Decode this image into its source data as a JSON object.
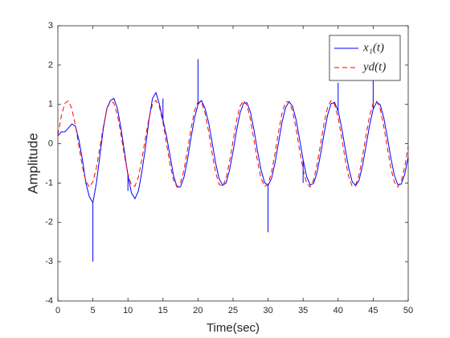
{
  "chart_data": {
    "type": "line",
    "xlabel": "Time(sec)",
    "ylabel": "Amplitude",
    "xlim": [
      0,
      50
    ],
    "ylim": [
      -4,
      3
    ],
    "xticks": [
      0,
      5,
      10,
      15,
      20,
      25,
      30,
      35,
      40,
      45,
      50
    ],
    "yticks": [
      -4,
      -3,
      -2,
      -1,
      0,
      1,
      2,
      3
    ],
    "grid": false,
    "legend": "northeast",
    "series": [
      {
        "name": "x₁(t)",
        "color": "#0000ff",
        "dash": "solid",
        "x": [
          0,
          0.5,
          1,
          1.5,
          2,
          2.5,
          3,
          3.5,
          4,
          4.5,
          5,
          5,
          5,
          5.5,
          6,
          6.5,
          7,
          7.5,
          8,
          8.5,
          9,
          9.5,
          10,
          10,
          10,
          10.5,
          11,
          11.5,
          12,
          12.5,
          13,
          13.5,
          14,
          14.5,
          15,
          15,
          15,
          15.5,
          16,
          16.5,
          17,
          17.5,
          18,
          18.5,
          19,
          19.5,
          20,
          20,
          20,
          20.5,
          21,
          21.5,
          22,
          22.5,
          23,
          23.5,
          24,
          24.5,
          25,
          25.5,
          26,
          26.5,
          27,
          27.5,
          28,
          28.5,
          29,
          29.5,
          30,
          30,
          30,
          30.5,
          31,
          31.5,
          32,
          32.5,
          33,
          33.5,
          34,
          34.5,
          35,
          35,
          35,
          35.5,
          36,
          36.5,
          37,
          37.5,
          38,
          38.5,
          39,
          39.5,
          40,
          40,
          40,
          40.5,
          41,
          41.5,
          42,
          42.5,
          43,
          43.5,
          44,
          44.5,
          45,
          45,
          45,
          45.5,
          46,
          46.5,
          47,
          47.5,
          48,
          48.5,
          49,
          49.5,
          50
        ],
        "values": [
          0.2,
          0.3,
          0.3,
          0.4,
          0.5,
          0.45,
          0.1,
          -0.4,
          -1.0,
          -1.35,
          -1.5,
          -3,
          -1.5,
          -1.0,
          -0.3,
          0.4,
          0.9,
          1.1,
          1.15,
          0.9,
          0.4,
          -0.2,
          -0.8,
          -1.2,
          -0.8,
          -1.25,
          -1.4,
          -1.2,
          -0.7,
          -0.1,
          0.6,
          1.15,
          1.3,
          1.0,
          0.6,
          1.15,
          0.6,
          0.2,
          -0.3,
          -0.8,
          -1.1,
          -1.1,
          -0.85,
          -0.4,
          0.15,
          0.65,
          1.0,
          2.15,
          1.0,
          1.1,
          0.9,
          0.55,
          0.05,
          -0.48,
          -0.88,
          -1.06,
          -1.0,
          -0.67,
          -0.2,
          0.33,
          0.78,
          1.03,
          1.04,
          0.79,
          0.34,
          -0.19,
          -0.67,
          -0.99,
          -1.06,
          -2.25,
          -1.06,
          -0.88,
          -0.48,
          0.04,
          0.55,
          0.92,
          1.07,
          0.95,
          0.61,
          0.11,
          -0.41,
          -1.0,
          -0.41,
          -0.83,
          -1.05,
          -1.01,
          -0.72,
          -0.26,
          0.27,
          0.73,
          1.02,
          1.05,
          0.83,
          1.55,
          0.83,
          0.41,
          -0.12,
          -0.61,
          -0.96,
          -1.07,
          -0.92,
          -0.54,
          -0.03,
          0.48,
          0.88,
          1.75,
          0.88,
          1.06,
          0.99,
          0.67,
          0.19,
          -0.34,
          -0.79,
          -1.04,
          -1.03,
          -0.78,
          -0.33
        ]
      },
      {
        "name": "yd(t)",
        "color": "#ff0000",
        "dash": "dashed",
        "x": [
          0,
          0.5,
          1,
          1.5,
          2,
          2.5,
          3,
          3.5,
          4,
          4.5,
          5,
          5.5,
          6,
          6.5,
          7,
          7.5,
          8,
          8.5,
          9,
          9.5,
          10,
          10.5,
          11,
          11.5,
          12,
          12.5,
          13,
          13.5,
          14,
          14.5,
          15,
          15.5,
          16,
          16.5,
          17,
          17.5,
          18,
          18.5,
          19,
          19.5,
          20,
          20.5,
          21,
          21.5,
          22,
          22.5,
          23,
          23.5,
          24,
          24.5,
          25,
          25.5,
          26,
          26.5,
          27,
          27.5,
          28,
          28.5,
          29,
          29.5,
          30,
          30.5,
          31,
          31.5,
          32,
          32.5,
          33,
          33.5,
          34,
          34.5,
          35,
          35.5,
          36,
          36.5,
          37,
          37.5,
          38,
          38.5,
          39,
          39.5,
          40,
          40.5,
          41,
          41.5,
          42,
          42.5,
          43,
          43.5,
          44,
          44.5,
          45,
          45.5,
          46,
          46.5,
          47,
          47.5,
          48,
          48.5,
          49,
          49.5,
          50
        ],
        "values": [
          0.22,
          0.71,
          1.03,
          1.09,
          0.89,
          0.47,
          -0.06,
          -0.58,
          -0.96,
          -1.1,
          -0.97,
          -0.61,
          -0.09,
          0.45,
          0.87,
          1.09,
          1.03,
          0.73,
          0.25,
          -0.3,
          -0.77,
          -1.05,
          -1.08,
          -0.84,
          -0.39,
          0.15,
          0.65,
          1.0,
          1.1,
          0.93,
          0.54,
          0.01,
          -0.52,
          -0.92,
          -1.1,
          -1.0,
          -0.66,
          -0.16,
          0.38,
          0.83,
          1.07,
          1.06,
          0.78,
          0.32,
          -0.23,
          -0.72,
          -1.03,
          -1.09,
          -0.88,
          -0.46,
          0.07,
          0.59,
          0.96,
          1.1,
          0.97,
          0.6,
          0.08,
          -0.45,
          -0.88,
          -1.09,
          -1.03,
          -0.72,
          -0.23,
          0.31,
          0.78,
          1.06,
          1.07,
          0.83,
          0.38,
          -0.16,
          -0.66,
          -1.0,
          -1.1,
          -0.92,
          -0.52,
          0.0,
          0.53,
          0.93,
          1.1,
          1.0,
          0.66,
          0.15,
          -0.39,
          -0.83,
          -1.08,
          -1.05,
          -0.78,
          -0.3,
          0.24,
          0.72,
          1.03,
          1.09,
          0.88,
          0.45,
          -0.08,
          -0.6,
          -0.97,
          -1.1,
          -0.96,
          -0.59,
          -0.07
        ]
      }
    ]
  }
}
